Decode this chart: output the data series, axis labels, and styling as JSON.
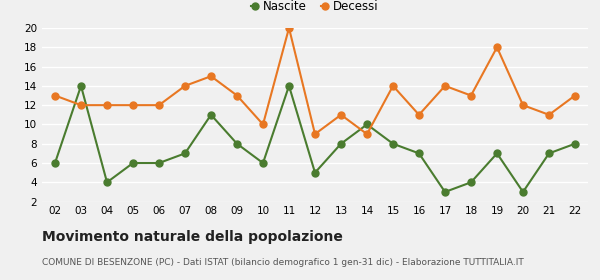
{
  "years": [
    "02",
    "03",
    "04",
    "05",
    "06",
    "07",
    "08",
    "09",
    "10",
    "11",
    "12",
    "13",
    "14",
    "15",
    "16",
    "17",
    "18",
    "19",
    "20",
    "21",
    "22"
  ],
  "nascite": [
    6,
    14,
    4,
    6,
    6,
    7,
    11,
    8,
    6,
    14,
    5,
    8,
    10,
    8,
    7,
    3,
    4,
    7,
    3,
    7,
    8
  ],
  "decessi": [
    13,
    12,
    12,
    12,
    12,
    14,
    15,
    13,
    10,
    20,
    9,
    11,
    9,
    14,
    11,
    14,
    13,
    18,
    12,
    11,
    13
  ],
  "nascite_color": "#4a7c2f",
  "decessi_color": "#e87722",
  "background_color": "#f0f0f0",
  "grid_color": "#ffffff",
  "title": "Movimento naturale della popolazione",
  "subtitle": "COMUNE DI BESENZONE (PC) - Dati ISTAT (bilancio demografico 1 gen-31 dic) - Elaborazione TUTTITALIA.IT",
  "legend_nascite": "Nascite",
  "legend_decessi": "Decessi",
  "ylim": [
    2,
    20
  ],
  "yticks": [
    2,
    4,
    6,
    8,
    10,
    12,
    14,
    16,
    18,
    20
  ],
  "marker_size": 5,
  "line_width": 1.5,
  "title_fontsize": 10,
  "subtitle_fontsize": 6.5,
  "tick_fontsize": 7.5,
  "legend_fontsize": 8.5
}
